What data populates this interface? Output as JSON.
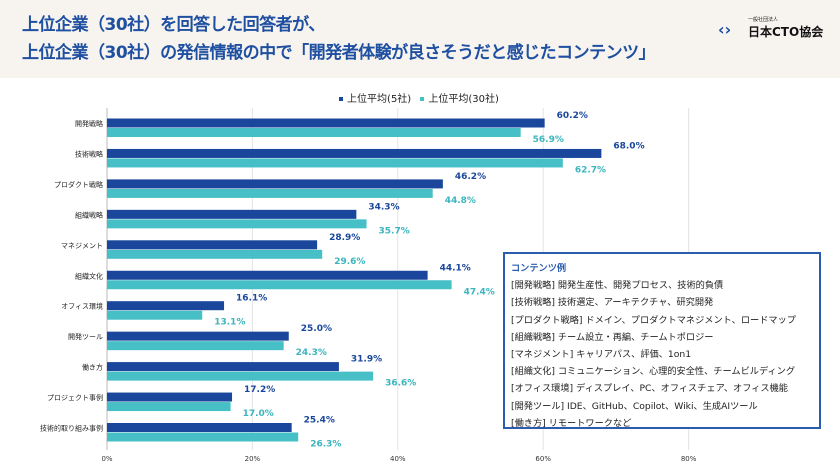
{
  "header": {
    "title_line1": "上位企業（30社）を回答した回答者が、",
    "title_line2": "上位企業（30社）の発信情報の中で「開発者体験が良さそうだと感じたコンテンツ」",
    "logo_small": "一般社団法人",
    "logo_name": "日本CTO協会"
  },
  "chart_data": {
    "type": "bar",
    "orientation": "horizontal",
    "categories": [
      "開発戦略",
      "技術戦略",
      "プロダクト戦略",
      "組織戦略",
      "マネジメント",
      "組織文化",
      "オフィス環境",
      "開発ツール",
      "働き方",
      "プロジェクト事例",
      "技術的取り組み事例"
    ],
    "series": [
      {
        "name": "上位平均(5社)",
        "color": "#1a479b",
        "values": [
          60.2,
          68.0,
          46.2,
          34.3,
          28.9,
          44.1,
          16.1,
          25.0,
          31.9,
          17.2,
          25.4
        ]
      },
      {
        "name": "上位平均(30社)",
        "color": "#46bfc6",
        "values": [
          56.9,
          62.7,
          44.8,
          35.7,
          29.6,
          47.4,
          13.1,
          24.3,
          36.6,
          17.0,
          26.3
        ]
      }
    ],
    "xlim": [
      0,
      80
    ],
    "xticks": [
      "0%",
      "20%",
      "40%",
      "60%",
      "80%"
    ],
    "grid": true,
    "legend": "top"
  },
  "examples": {
    "title": "コンテンツ例",
    "lines": [
      "[開発戦略] 開発生産性、開発プロセス、技術的負債",
      "[技術戦略] 技術選定、アーキテクチャ、研究開発",
      "[プロダクト戦略] ドメイン、プロダクトマネジメント、ロードマップ",
      "[組織戦略] チーム設立・再編、チームトポロジー",
      "[マネジメント] キャリアパス、評価、1on1",
      "[組織文化] コミュニケーション、心理的安全性、チームビルディング",
      "[オフィス環境] ディスプレイ、PC、オフィスチェア、オフィス機能",
      "[開発ツール] IDE、GitHub、Copilot、Wiki、生成AIツール",
      "[働き方] リモートワークなど"
    ]
  }
}
